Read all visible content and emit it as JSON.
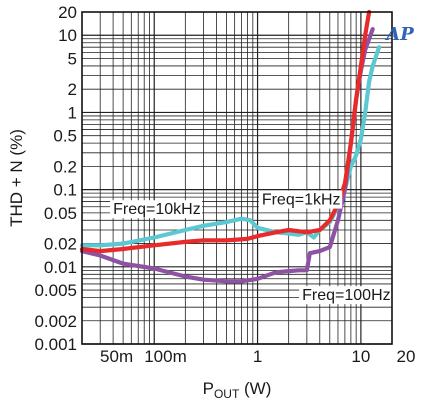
{
  "chart_data": {
    "type": "line",
    "title": "",
    "xlabel": {
      "main": "P",
      "sub": "OUT",
      "unit": " (W)"
    },
    "ylabel": "THD + N (%)",
    "xscale": "log",
    "yscale": "log",
    "xlim": [
      0.02,
      20
    ],
    "ylim": [
      0.001,
      20
    ],
    "grid": true,
    "x_tick_labels": [
      {
        "value": 0.05,
        "label": "50m"
      },
      {
        "value": 0.1,
        "label": "100m"
      },
      {
        "value": 1,
        "label": "1"
      },
      {
        "value": 10,
        "label": "10"
      },
      {
        "value": 20,
        "label": "20"
      }
    ],
    "y_tick_labels": [
      {
        "value": 20,
        "label": "20"
      },
      {
        "value": 10,
        "label": "10"
      },
      {
        "value": 5,
        "label": "5"
      },
      {
        "value": 2,
        "label": "2"
      },
      {
        "value": 1,
        "label": "1"
      },
      {
        "value": 0.5,
        "label": "0.5"
      },
      {
        "value": 0.2,
        "label": "0.2"
      },
      {
        "value": 0.1,
        "label": "0.1"
      },
      {
        "value": 0.05,
        "label": "0.05"
      },
      {
        "value": 0.02,
        "label": "0.02"
      },
      {
        "value": 0.01,
        "label": "0.01"
      },
      {
        "value": 0.005,
        "label": "0.005"
      },
      {
        "value": 0.002,
        "label": "0.002"
      },
      {
        "value": 0.001,
        "label": "0.001"
      }
    ],
    "series": [
      {
        "name": "Freq=10kHz",
        "color": "#5bc8d2",
        "points": [
          [
            0.02,
            0.019
          ],
          [
            0.03,
            0.019
          ],
          [
            0.05,
            0.02
          ],
          [
            0.1,
            0.024
          ],
          [
            0.2,
            0.03
          ],
          [
            0.3,
            0.034
          ],
          [
            0.5,
            0.038
          ],
          [
            0.7,
            0.042
          ],
          [
            0.85,
            0.04
          ],
          [
            1.0,
            0.032
          ],
          [
            1.5,
            0.028
          ],
          [
            2.0,
            0.027
          ],
          [
            2.5,
            0.026
          ],
          [
            3.0,
            0.028
          ],
          [
            3.5,
            0.024
          ],
          [
            4.0,
            0.03
          ],
          [
            5.0,
            0.038
          ],
          [
            6.0,
            0.06
          ],
          [
            7.0,
            0.1
          ],
          [
            8.0,
            0.2
          ],
          [
            9.0,
            0.28
          ],
          [
            10.0,
            0.45
          ],
          [
            11.0,
            1.0
          ],
          [
            12.0,
            2.5
          ],
          [
            13.0,
            4.0
          ],
          [
            15.0,
            7.0
          ]
        ]
      },
      {
        "name": "Freq=1kHz",
        "color": "#e82a2a",
        "points": [
          [
            0.02,
            0.017
          ],
          [
            0.03,
            0.016
          ],
          [
            0.05,
            0.017
          ],
          [
            0.1,
            0.019
          ],
          [
            0.2,
            0.021
          ],
          [
            0.3,
            0.022
          ],
          [
            0.5,
            0.022
          ],
          [
            0.8,
            0.023
          ],
          [
            1.0,
            0.025
          ],
          [
            1.5,
            0.028
          ],
          [
            2.0,
            0.03
          ],
          [
            3.0,
            0.028
          ],
          [
            4.0,
            0.03
          ],
          [
            5.0,
            0.04
          ],
          [
            6.0,
            0.065
          ],
          [
            7.0,
            0.12
          ],
          [
            8.0,
            0.4
          ],
          [
            9.0,
            1.5
          ],
          [
            10.0,
            4.0
          ],
          [
            11.0,
            10.0
          ],
          [
            12.0,
            20.0
          ]
        ]
      },
      {
        "name": "Freq=100Hz",
        "color": "#8e52a4",
        "points": [
          [
            0.02,
            0.016
          ],
          [
            0.03,
            0.014
          ],
          [
            0.05,
            0.011
          ],
          [
            0.1,
            0.0095
          ],
          [
            0.2,
            0.0075
          ],
          [
            0.3,
            0.0068
          ],
          [
            0.5,
            0.0065
          ],
          [
            0.7,
            0.0065
          ],
          [
            1.0,
            0.007
          ],
          [
            1.5,
            0.0085
          ],
          [
            2.0,
            0.0088
          ],
          [
            2.5,
            0.009
          ],
          [
            3.0,
            0.009
          ],
          [
            3.2,
            0.015
          ],
          [
            4.0,
            0.016
          ],
          [
            5.0,
            0.018
          ],
          [
            6.0,
            0.04
          ],
          [
            7.0,
            0.1
          ],
          [
            8.0,
            0.4
          ],
          [
            9.0,
            1.5
          ],
          [
            10.0,
            3.5
          ],
          [
            11.0,
            6.5
          ],
          [
            13.0,
            12.0
          ]
        ]
      }
    ],
    "annotations": [
      {
        "text": "Freq=10kHz",
        "series": "Freq=10kHz"
      },
      {
        "text": "Freq=1kHz",
        "series": "Freq=1kHz"
      },
      {
        "text": "Freq=100Hz",
        "series": "Freq=100Hz"
      }
    ],
    "logo_text": "AP"
  }
}
